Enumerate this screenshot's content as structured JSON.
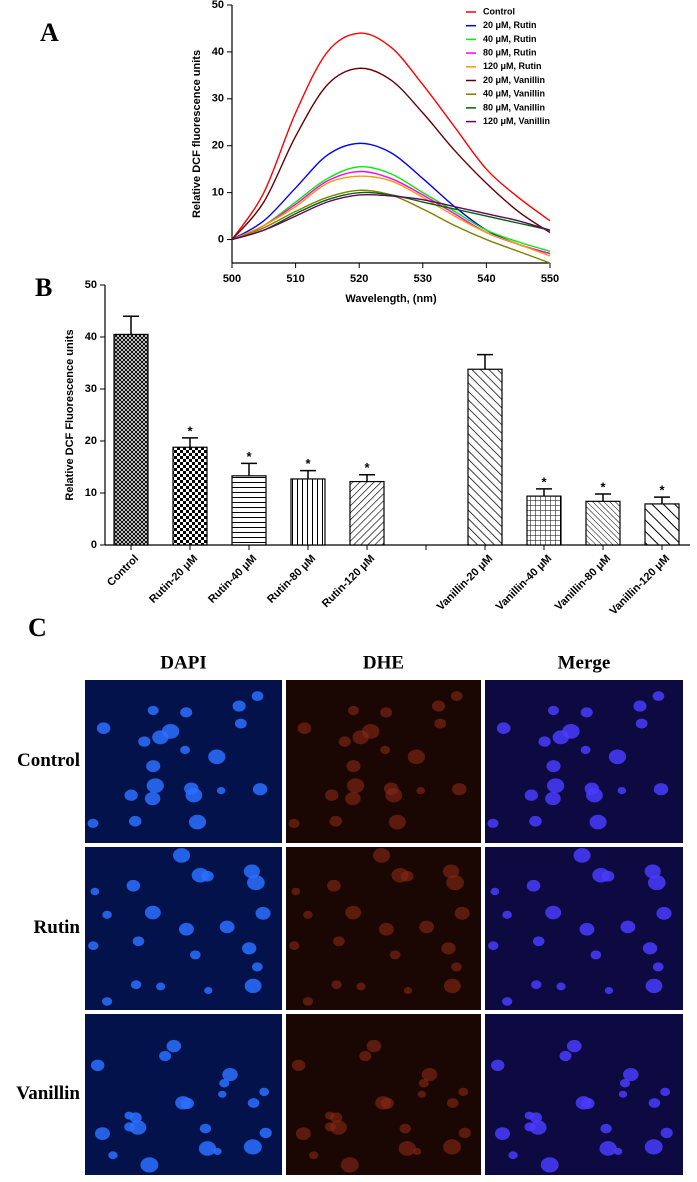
{
  "panels": [
    "A",
    "B",
    "C"
  ],
  "chart_data": [
    {
      "type": "line",
      "xlabel": "Wavelength, (nm)",
      "ylabel": "Relative DCF fluorescence units",
      "x": [
        500,
        505,
        510,
        515,
        520,
        525,
        530,
        535,
        540,
        545,
        550
      ],
      "xlim": [
        500,
        550
      ],
      "xticks": [
        500,
        510,
        520,
        530,
        540,
        550
      ],
      "ylim": [
        -5,
        50
      ],
      "yticks": [
        0,
        10,
        20,
        30,
        40,
        50
      ],
      "legend": "upper-right",
      "series": [
        {
          "name": "Control",
          "color": "#ff0000",
          "values": [
            0,
            10,
            27,
            40,
            44,
            41,
            33,
            24,
            15,
            9,
            4
          ]
        },
        {
          "name": "20 μM, Rutin",
          "color": "#0000ff",
          "values": [
            0,
            4,
            11,
            18,
            20.5,
            18.5,
            13,
            7,
            2,
            -1,
            -3
          ]
        },
        {
          "name": "40 μM, Rutin",
          "color": "#00ee00",
          "values": [
            0,
            3,
            8,
            13,
            15.5,
            14,
            10,
            6,
            2,
            -0.5,
            -2.5
          ]
        },
        {
          "name": "80 μM, Rutin",
          "color": "#ff00ff",
          "values": [
            0,
            3,
            7.5,
            12.5,
            14.5,
            13,
            9.5,
            5.5,
            1.5,
            -1,
            -3
          ]
        },
        {
          "name": "120 μM, Rutin",
          "color": "#ff9900",
          "values": [
            0,
            3,
            7,
            12,
            13.5,
            12.5,
            9,
            5,
            1.5,
            -1,
            -3.5
          ]
        },
        {
          "name": "20 μM, Vanillin",
          "color": "#660000",
          "values": [
            0,
            8,
            22,
            33,
            36.5,
            34,
            27,
            19,
            12,
            6,
            1.5
          ]
        },
        {
          "name": "40 μM, Vanillin",
          "color": "#808000",
          "values": [
            0,
            2.5,
            6,
            9,
            10.5,
            9.5,
            6.5,
            3,
            0,
            -2.5,
            -5
          ]
        },
        {
          "name": "80 μM, Vanillin",
          "color": "#006600",
          "values": [
            0,
            2,
            5.5,
            8.5,
            10,
            9.5,
            8,
            6.5,
            5,
            3.5,
            2
          ]
        },
        {
          "name": "120 μM, Vanillin",
          "color": "#660066",
          "values": [
            0,
            2,
            5,
            8,
            9.5,
            9.3,
            8.5,
            7,
            5.5,
            4,
            2
          ]
        }
      ]
    },
    {
      "type": "bar",
      "ylabel": "Relative DCF Fluorescence units",
      "categories": [
        "Control",
        "Rutin-20 μM",
        "Rutin-40 μM",
        "Rutin-80 μM",
        "Rutin-120 μM",
        null,
        "Vanillin-20 μM",
        "Vanillin-40 μM",
        "Vanillin-80 μM",
        "Vanillin-120 μM"
      ],
      "values": [
        40.5,
        18.8,
        13.3,
        12.7,
        12.2,
        null,
        33.8,
        9.4,
        8.4,
        7.9
      ],
      "errors": [
        3.5,
        1.8,
        2.4,
        1.6,
        1.3,
        null,
        2.8,
        1.4,
        1.4,
        1.3
      ],
      "markers": [
        null,
        "*",
        "*",
        "*",
        "*",
        null,
        null,
        "*",
        "*",
        "*"
      ],
      "color": "#000000",
      "ylim": [
        0,
        50
      ],
      "yticks": [
        0,
        10,
        20,
        30,
        40,
        50
      ]
    }
  ],
  "micrographs": {
    "columns": [
      "DAPI",
      "DHE",
      "Merge"
    ],
    "rows": [
      "Control",
      "Rutin",
      "Vanillin"
    ]
  }
}
